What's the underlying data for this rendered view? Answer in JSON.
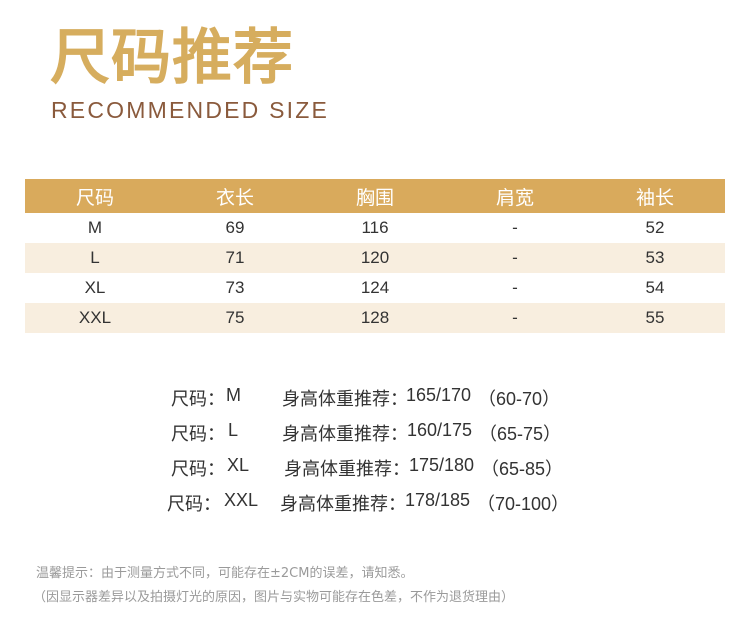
{
  "header": {
    "title_cn": "尺码推荐",
    "title_en": "RECOMMENDED SIZE"
  },
  "size_table": {
    "columns": [
      "尺码",
      "衣长",
      "胸围",
      "肩宽",
      "袖长"
    ],
    "rows": [
      [
        "M",
        "69",
        "116",
        "-",
        "52"
      ],
      [
        "L",
        "71",
        "120",
        "-",
        "53"
      ],
      [
        "XL",
        "73",
        "124",
        "-",
        "54"
      ],
      [
        "XXL",
        "75",
        "128",
        "-",
        "55"
      ]
    ]
  },
  "recommendations": [
    {
      "size_label": "尺码：",
      "size": "M",
      "hw_label": "身高体重推荐：",
      "height": "165/170",
      "weight": "（60-70）"
    },
    {
      "size_label": "尺码：",
      "size": "L",
      "hw_label": "身高体重推荐：",
      "height": "160/175",
      "weight": "（65-75）"
    },
    {
      "size_label": "尺码：",
      "size": "XL",
      "hw_label": "身高体重推荐：",
      "height": "175/180",
      "weight": "（65-85）"
    },
    {
      "size_label": "尺码：",
      "size": "XXL",
      "hw_label": "身高体重推荐：",
      "height": "178/185",
      "weight": "（70-100）"
    }
  ],
  "notes": {
    "line1": "温馨提示：由于测量方式不同，可能存在±2CM的误差，请知悉。",
    "line2": "（因显示器差异以及拍摄灯光的原因，图片与实物可能存在色差，不作为退货理由）"
  },
  "colors": {
    "accent_gold": "#d9aa5c",
    "title_gold": "#d6ad5e",
    "subtitle_brown": "#8a5a3c",
    "row_alt": "#f8eedf"
  }
}
